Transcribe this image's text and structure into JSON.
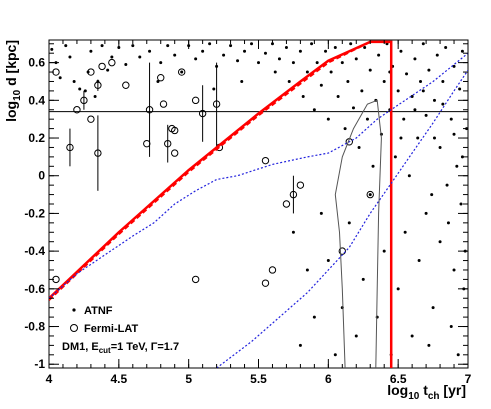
{
  "chart_data": {
    "type": "scatter",
    "xlabel_main": "log",
    "xlabel_sub": "10",
    "xlabel_var": "t",
    "xlabel_varsub": "ch",
    "xlabel_unit": "[yr]",
    "ylabel_main": "log",
    "ylabel_sub": "10",
    "ylabel_rest": "d [kpc]",
    "xlim": [
      4,
      7
    ],
    "ylim": [
      -1.02,
      0.72
    ],
    "xticks": [
      4,
      4.5,
      5,
      5.5,
      6,
      6.5,
      7
    ],
    "xtick_labels": [
      "4",
      "4.5",
      "5",
      "5.5",
      "6",
      "6.5",
      "7"
    ],
    "yticks": [
      -1,
      -0.8,
      -0.6,
      -0.4,
      -0.2,
      0,
      0.2,
      0.4,
      0.6
    ],
    "ytick_labels": [
      "-1",
      "-0.8",
      "-0.6",
      "-0.4",
      "-0.2",
      "0",
      "0.2",
      "0.4",
      "0.6"
    ],
    "hline_y": 0.34,
    "legend": {
      "atnf": "ATNF",
      "fermi": "Fermi-LAT",
      "dm_prefix": "DM1, E",
      "dm_sub": "cut",
      "dm_mid": "=1 TeV, Γ=1.7"
    },
    "colors": {
      "red": "#ff0000",
      "blue": "#2222dd",
      "grey": "#555555",
      "black": "#000000"
    },
    "series": [
      {
        "kind": "red-solid",
        "points": [
          [
            4.0,
            -0.65
          ],
          [
            4.5,
            -0.3
          ],
          [
            5.0,
            0.03
          ],
          [
            5.5,
            0.33
          ],
          [
            5.8,
            0.5
          ],
          [
            6.0,
            0.61
          ],
          [
            6.3,
            0.71
          ],
          [
            6.45,
            0.71
          ],
          [
            6.45,
            -1.02
          ]
        ]
      },
      {
        "kind": "red-dashed",
        "points": [
          [
            4.0,
            -0.66
          ],
          [
            4.5,
            -0.31
          ],
          [
            5.0,
            0.02
          ],
          [
            5.5,
            0.32
          ],
          [
            6.0,
            0.6
          ],
          [
            6.3,
            0.71
          ]
        ]
      },
      {
        "kind": "blue-upper",
        "points": [
          [
            4.0,
            -0.65
          ],
          [
            4.2,
            -0.52
          ],
          [
            4.4,
            -0.42
          ],
          [
            4.6,
            -0.32
          ],
          [
            4.75,
            -0.25
          ],
          [
            4.9,
            -0.15
          ],
          [
            5.05,
            -0.08
          ],
          [
            5.2,
            -0.02
          ],
          [
            5.35,
            0.0
          ],
          [
            5.6,
            0.06
          ],
          [
            5.85,
            0.1
          ],
          [
            6.0,
            0.12
          ],
          [
            6.2,
            0.2
          ],
          [
            6.35,
            0.3
          ],
          [
            6.55,
            0.4
          ],
          [
            6.75,
            0.5
          ],
          [
            6.95,
            0.62
          ],
          [
            7.0,
            0.65
          ]
        ]
      },
      {
        "kind": "blue-lower",
        "points": [
          [
            5.2,
            -1.02
          ],
          [
            5.45,
            -0.88
          ],
          [
            5.65,
            -0.75
          ],
          [
            5.85,
            -0.62
          ],
          [
            6.0,
            -0.5
          ],
          [
            6.15,
            -0.38
          ],
          [
            6.3,
            -0.2
          ],
          [
            6.45,
            -0.04
          ],
          [
            6.6,
            0.12
          ],
          [
            6.75,
            0.28
          ],
          [
            6.9,
            0.45
          ],
          [
            7.0,
            0.56
          ]
        ]
      },
      {
        "kind": "grey-contour",
        "points": [
          [
            6.12,
            -1.02
          ],
          [
            6.1,
            -0.6
          ],
          [
            6.08,
            -0.3
          ],
          [
            6.05,
            -0.1
          ],
          [
            6.1,
            0.1
          ],
          [
            6.18,
            0.25
          ],
          [
            6.28,
            0.38
          ],
          [
            6.35,
            0.4
          ],
          [
            6.38,
            0.2
          ],
          [
            6.36,
            -0.2
          ],
          [
            6.35,
            -0.6
          ],
          [
            6.34,
            -1.02
          ]
        ]
      }
    ],
    "atnf_points": [
      [
        4.02,
        0.67
      ],
      [
        4.05,
        0.6
      ],
      [
        4.12,
        0.69
      ],
      [
        4.15,
        0.63
      ],
      [
        4.22,
        0.46
      ],
      [
        4.28,
        0.55
      ],
      [
        4.3,
        0.66
      ],
      [
        4.33,
        0.42
      ],
      [
        4.38,
        0.69
      ],
      [
        4.45,
        0.63
      ],
      [
        4.5,
        0.68
      ],
      [
        4.55,
        0.59
      ],
      [
        4.6,
        0.69
      ],
      [
        4.65,
        0.63
      ],
      [
        4.72,
        0.66
      ],
      [
        4.8,
        0.6
      ],
      [
        4.85,
        0.69
      ],
      [
        4.9,
        0.64
      ],
      [
        4.95,
        0.55
      ],
      [
        5.0,
        0.69
      ],
      [
        5.05,
        0.62
      ],
      [
        5.1,
        0.66
      ],
      [
        5.15,
        0.7
      ],
      [
        5.2,
        0.58
      ],
      [
        5.25,
        0.64
      ],
      [
        5.3,
        0.69
      ],
      [
        5.35,
        0.61
      ],
      [
        5.4,
        0.66
      ],
      [
        5.45,
        0.7
      ],
      [
        5.5,
        0.6
      ],
      [
        5.55,
        0.65
      ],
      [
        5.6,
        0.7
      ],
      [
        5.62,
        0.55
      ],
      [
        5.65,
        0.62
      ],
      [
        5.7,
        0.68
      ],
      [
        5.72,
        0.5
      ],
      [
        5.75,
        0.6
      ],
      [
        5.8,
        0.66
      ],
      [
        5.82,
        0.42
      ],
      [
        5.85,
        0.55
      ],
      [
        5.88,
        0.7
      ],
      [
        5.9,
        0.35
      ],
      [
        5.92,
        0.6
      ],
      [
        5.95,
        0.48
      ],
      [
        5.98,
        0.66
      ],
      [
        6.0,
        0.3
      ],
      [
        6.02,
        0.55
      ],
      [
        6.05,
        0.68
      ],
      [
        6.07,
        0.42
      ],
      [
        6.1,
        0.6
      ],
      [
        6.12,
        0.25
      ],
      [
        6.14,
        0.5
      ],
      [
        6.16,
        0.7
      ],
      [
        6.18,
        0.36
      ],
      [
        6.2,
        0.62
      ],
      [
        6.22,
        0.15
      ],
      [
        6.24,
        0.45
      ],
      [
        6.26,
        0.68
      ],
      [
        6.28,
        0.3
      ],
      [
        6.3,
        0.56
      ],
      [
        6.32,
        0.05
      ],
      [
        6.34,
        0.4
      ],
      [
        6.36,
        0.64
      ],
      [
        6.38,
        0.22
      ],
      [
        6.4,
        0.5
      ],
      [
        6.42,
        0.7
      ],
      [
        6.44,
        0.35
      ],
      [
        6.46,
        0.58
      ],
      [
        6.48,
        0.1
      ],
      [
        6.5,
        0.45
      ],
      [
        6.52,
        0.66
      ],
      [
        6.54,
        0.3
      ],
      [
        6.56,
        0.54
      ],
      [
        6.58,
        0.0
      ],
      [
        6.6,
        0.42
      ],
      [
        6.62,
        0.62
      ],
      [
        6.64,
        0.2
      ],
      [
        6.66,
        0.5
      ],
      [
        6.68,
        0.7
      ],
      [
        6.7,
        0.32
      ],
      [
        6.72,
        0.56
      ],
      [
        6.74,
        -0.1
      ],
      [
        6.76,
        0.4
      ],
      [
        6.78,
        0.64
      ],
      [
        6.8,
        0.15
      ],
      [
        6.82,
        0.5
      ],
      [
        6.84,
        0.68
      ],
      [
        6.86,
        -0.25
      ],
      [
        6.88,
        0.3
      ],
      [
        6.9,
        0.58
      ],
      [
        6.92,
        0.05
      ],
      [
        6.94,
        0.46
      ],
      [
        6.96,
        0.66
      ],
      [
        6.98,
        -0.4
      ],
      [
        6.99,
        0.25
      ],
      [
        6.97,
        -0.6
      ],
      [
        6.95,
        -0.15
      ],
      [
        6.9,
        -0.5
      ],
      [
        6.85,
        -0.05
      ],
      [
        6.8,
        -0.35
      ],
      [
        6.75,
        -0.7
      ],
      [
        6.7,
        -0.2
      ],
      [
        6.65,
        -0.45
      ],
      [
        6.6,
        -0.85
      ],
      [
        6.55,
        -0.3
      ],
      [
        6.5,
        -0.6
      ],
      [
        6.45,
        -0.95
      ],
      [
        6.4,
        -0.4
      ],
      [
        6.35,
        -0.75
      ],
      [
        6.3,
        -0.1
      ],
      [
        6.25,
        -0.55
      ],
      [
        6.2,
        -0.85
      ],
      [
        6.15,
        -0.25
      ],
      [
        6.1,
        -0.7
      ],
      [
        6.05,
        -0.95
      ],
      [
        6.0,
        -0.45
      ],
      [
        5.95,
        -0.2
      ],
      [
        5.9,
        -0.75
      ],
      [
        5.85,
        -0.5
      ],
      [
        5.8,
        -0.9
      ],
      [
        5.75,
        -0.3
      ],
      [
        6.88,
        -0.8
      ],
      [
        6.93,
        -0.95
      ],
      [
        6.72,
        -0.9
      ],
      [
        4.08,
        0.52
      ],
      [
        4.18,
        0.5
      ],
      [
        4.26,
        0.45
      ],
      [
        4.35,
        0.5
      ],
      [
        4.42,
        0.56
      ],
      [
        4.78,
        0.5
      ],
      [
        5.18,
        0.46
      ],
      [
        5.38,
        0.5
      ],
      [
        6.62,
        0.35
      ],
      [
        6.68,
        0.45
      ],
      [
        6.76,
        0.2
      ],
      [
        6.82,
        0.38
      ],
      [
        6.9,
        0.22
      ],
      [
        6.96,
        0.1
      ],
      [
        6.52,
        0.2
      ],
      [
        6.44,
        0.55
      ]
    ],
    "fermi_points": [
      {
        "x": 4.05,
        "y": 0.55,
        "err": 0
      },
      {
        "x": 4.15,
        "y": 0.15,
        "err": 0.1
      },
      {
        "x": 4.2,
        "y": 0.35,
        "err": 0
      },
      {
        "x": 4.25,
        "y": 0.4,
        "err": 0.05
      },
      {
        "x": 4.3,
        "y": 0.3,
        "err": 0
      },
      {
        "x": 4.35,
        "y": 0.48,
        "err": 0.03
      },
      {
        "x": 4.3,
        "y": 0.55,
        "err": 0
      },
      {
        "x": 4.38,
        "y": 0.58,
        "err": 0
      },
      {
        "x": 4.45,
        "y": 0.6,
        "err": 0
      },
      {
        "x": 4.35,
        "y": 0.12,
        "err": 0.2
      },
      {
        "x": 4.55,
        "y": 0.48,
        "err": 0
      },
      {
        "x": 4.7,
        "y": 0.17,
        "err": 0
      },
      {
        "x": 4.72,
        "y": 0.35,
        "err": 0.25
      },
      {
        "x": 4.8,
        "y": 0.52,
        "err": 0
      },
      {
        "x": 4.82,
        "y": 0.38,
        "err": 0
      },
      {
        "x": 4.85,
        "y": 0.17,
        "err": 0.1
      },
      {
        "x": 4.88,
        "y": 0.25,
        "err": 0
      },
      {
        "x": 4.9,
        "y": 0.24,
        "err": 0
      },
      {
        "x": 4.9,
        "y": 0.12,
        "err": 0
      },
      {
        "x": 4.95,
        "y": 0.55,
        "err": 0
      },
      {
        "x": 5.05,
        "y": 0.4,
        "err": 0
      },
      {
        "x": 5.1,
        "y": 0.33,
        "err": 0.15
      },
      {
        "x": 5.2,
        "y": 0.38,
        "err": 0.22
      },
      {
        "x": 5.22,
        "y": 0.15,
        "err": 0
      },
      {
        "x": 5.55,
        "y": 0.08,
        "err": 0
      },
      {
        "x": 5.8,
        "y": -0.05,
        "err": 0
      },
      {
        "x": 5.75,
        "y": -0.1,
        "err": 0.1
      },
      {
        "x": 5.7,
        "y": -0.15,
        "err": 0
      },
      {
        "x": 5.55,
        "y": -0.57,
        "err": 0
      },
      {
        "x": 5.6,
        "y": -0.5,
        "err": 0
      },
      {
        "x": 6.1,
        "y": -0.4,
        "err": 0
      },
      {
        "x": 6.15,
        "y": 0.18,
        "err": 0
      },
      {
        "x": 6.3,
        "y": -0.1,
        "err": 0
      },
      {
        "x": 5.05,
        "y": -0.55,
        "err": 0
      },
      {
        "x": 4.05,
        "y": -0.55,
        "err": 0
      }
    ]
  }
}
